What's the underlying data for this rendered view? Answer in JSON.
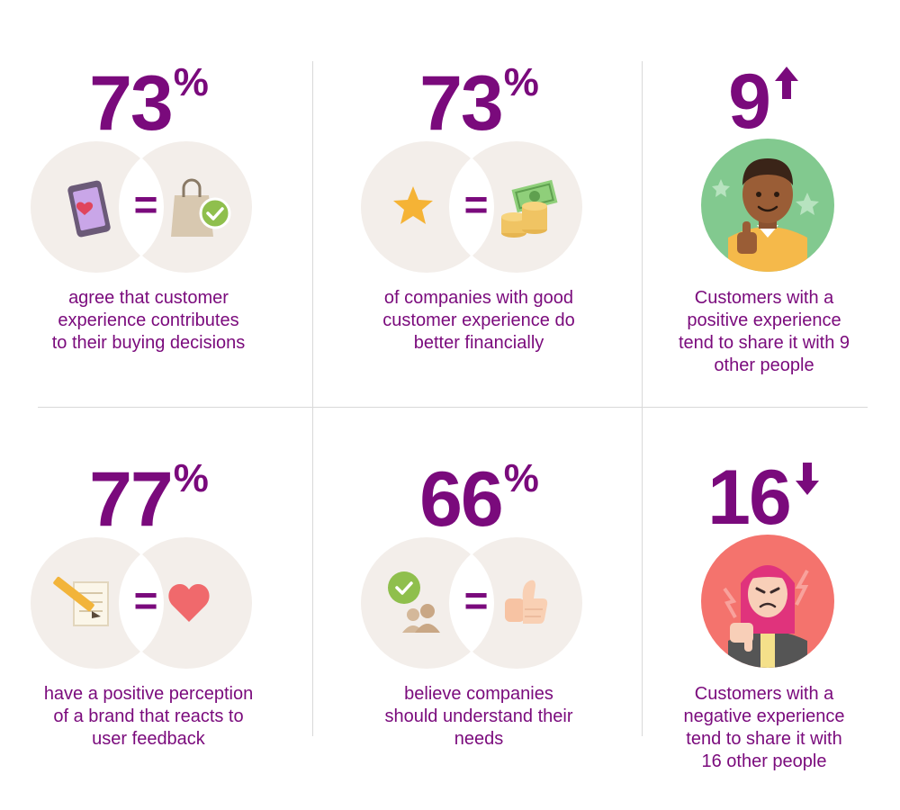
{
  "stats": [
    {
      "value": "73",
      "suffix": "%",
      "icon_left": "phone-heart-icon",
      "icon_right": "shopping-bag-check-icon",
      "desc_lines": [
        "agree that customer",
        "experience contributes",
        "to their buying decisions"
      ]
    },
    {
      "value": "73",
      "suffix": "%",
      "icon_left": "star-icon",
      "icon_right": "money-coins-icon",
      "desc_lines": [
        "of companies with good",
        "customer experience do",
        "better financially"
      ]
    },
    {
      "value": "9",
      "suffix": "",
      "arrow": "up",
      "avatar": "happy-customer-thumbs-up-icon",
      "desc_lines": [
        "Customers with a",
        "positive experience",
        "tend to share it with 9",
        "other people"
      ]
    },
    {
      "value": "77",
      "suffix": "%",
      "icon_left": "notepad-pencil-icon",
      "icon_right": "heart-icon",
      "desc_lines": [
        "have a positive perception",
        "of a brand that reacts to",
        "user feedback"
      ]
    },
    {
      "value": "66",
      "suffix": "%",
      "icon_left": "users-check-icon",
      "icon_right": "thumbs-up-icon",
      "desc_lines": [
        "believe companies",
        "should understand their",
        "needs"
      ]
    },
    {
      "value": "16",
      "suffix": "",
      "arrow": "down",
      "avatar": "angry-customer-thumbs-down-icon",
      "desc_lines": [
        "Customers with a",
        "negative experience",
        "tend to share it with",
        "16 other people"
      ]
    }
  ],
  "equals_sign": "=",
  "colors": {
    "accent": "#7a0a7c",
    "circle": "#f3eeea",
    "divider": "#d9d9d9",
    "green_bg": "#82c98f",
    "red_bg": "#f4736d"
  }
}
